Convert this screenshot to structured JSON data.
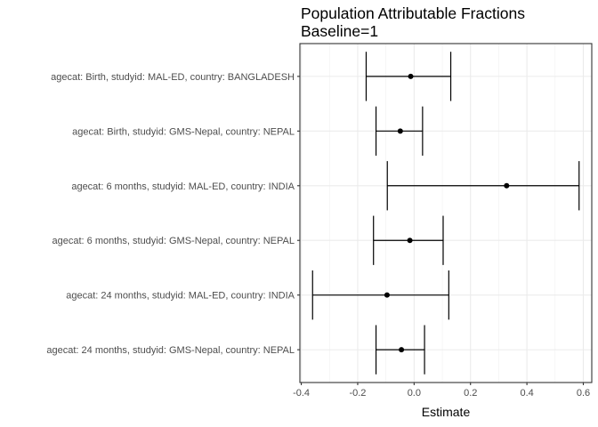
{
  "chart_data": {
    "type": "forest",
    "title": "Population Attributable Fractions",
    "subtitle": "Baseline=1",
    "xlabel": "Estimate",
    "ylabel": "",
    "xlim": [
      -0.405,
      0.63
    ],
    "xticks": [
      -0.4,
      -0.2,
      0.0,
      0.2,
      0.4,
      0.6
    ],
    "xtick_labels": [
      "-0.4",
      "-0.2",
      "0.0",
      "0.2",
      "0.4",
      "0.6"
    ],
    "grid": true,
    "categories": [
      "agecat: Birth, studyid: MAL-ED, country: BANGLADESH",
      "agecat: Birth, studyid: GMS-Nepal, country: NEPAL",
      "agecat: 6 months, studyid: MAL-ED, country: INDIA",
      "agecat: 6 months, studyid: GMS-Nepal, country: NEPAL",
      "agecat: 24 months, studyid: MAL-ED, country: INDIA",
      "agecat: 24 months, studyid: GMS-Nepal, country: NEPAL"
    ],
    "estimates": [
      -0.012,
      -0.049,
      0.328,
      -0.015,
      -0.096,
      -0.045
    ],
    "lower": [
      -0.17,
      -0.135,
      -0.095,
      -0.144,
      -0.36,
      -0.135
    ],
    "upper": [
      0.13,
      0.03,
      0.585,
      0.103,
      0.123,
      0.037
    ]
  }
}
